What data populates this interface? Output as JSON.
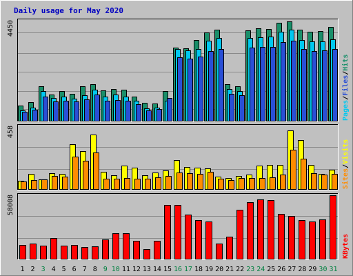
{
  "chart_data": {
    "type": "bar",
    "title": "Daily usage for May 2020",
    "categories": [
      "1",
      "2",
      "3",
      "4",
      "5",
      "6",
      "7",
      "8",
      "9",
      "10",
      "11",
      "12",
      "13",
      "14",
      "15",
      "16",
      "17",
      "18",
      "19",
      "20",
      "21",
      "22",
      "23",
      "24",
      "25",
      "26",
      "27",
      "28",
      "29",
      "30",
      "31"
    ],
    "weekend_days": [
      "3",
      "9",
      "10",
      "16",
      "17",
      "23",
      "24",
      "30",
      "31"
    ],
    "panels": [
      {
        "id": "top",
        "y_max": 4450,
        "y_max_label": "4450",
        "label_parts": [
          "Pages",
          "/",
          "Files",
          "/",
          "Hits"
        ],
        "series": [
          {
            "name": "Hits",
            "color": "#1a8f6a",
            "values": [
              710,
              860,
              1560,
              1180,
              1330,
              1210,
              1560,
              1640,
              1380,
              1430,
              1390,
              1100,
              810,
              800,
              1330,
              3270,
              3230,
              3610,
              3920,
              4060,
              1640,
              1560,
              4010,
              4100,
              4080,
              4360,
              4420,
              4060,
              3960,
              3980,
              4170
            ]
          },
          {
            "name": "Files",
            "color": "#00c8f0",
            "values": [
              500,
              610,
              1330,
              1050,
              1110,
              1010,
              1150,
              1410,
              1100,
              1180,
              1100,
              900,
              590,
              620,
              900,
              3200,
              3140,
              3190,
              3580,
              3680,
              1420,
              1350,
              3700,
              3720,
              3750,
              3970,
              4050,
              3600,
              3550,
              3550,
              3640
            ]
          },
          {
            "name": "Pages",
            "color": "#2a4fd6",
            "values": [
              420,
              520,
              1110,
              880,
              920,
              880,
              980,
              1200,
              910,
              960,
              920,
              760,
              500,
              540,
              1030,
              2820,
              2760,
              2860,
              3100,
              3200,
              1230,
              1170,
              3260,
              3280,
              3300,
              3500,
              3560,
              3190,
              3120,
              3130,
              3200
            ]
          }
        ]
      },
      {
        "id": "middle",
        "y_max": 458,
        "y_max_label": "458",
        "label_parts": [
          "Sites",
          "/",
          "Visits"
        ],
        "series": [
          {
            "name": "Visits",
            "color": "#ffff00",
            "values": [
              65,
              115,
              75,
              120,
              115,
              330,
              280,
              400,
              130,
              105,
              175,
              160,
              105,
              125,
              140,
              215,
              165,
              160,
              155,
              95,
              85,
              100,
              110,
              175,
              180,
              180,
              430,
              360,
              180,
              115,
              145
            ]
          },
          {
            "name": "Sites",
            "color": "#ff8c00",
            "values": [
              60,
              70,
              75,
              100,
              95,
              240,
              210,
              270,
              80,
              80,
              85,
              80,
              80,
              90,
              100,
              125,
              120,
              115,
              130,
              80,
              70,
              85,
              85,
              85,
              90,
              110,
              290,
              225,
              120,
              110,
              115
            ]
          }
        ]
      },
      {
        "id": "bottom",
        "y_max": 58008,
        "y_max_label": "58008",
        "label_parts": [
          "KBytes"
        ],
        "series": [
          {
            "name": "KBytes",
            "color": "#ff0000",
            "values": [
              12900,
              14100,
              12400,
              19400,
              12600,
              13200,
              11300,
              11700,
              17800,
              23500,
              23500,
              16700,
              9200,
              16800,
              49300,
              49300,
              40300,
              35800,
              34500,
              14100,
              20300,
              45200,
              51700,
              54200,
              53400,
              41300,
              39500,
              35300,
              34100,
              36000,
              59000
            ]
          }
        ]
      }
    ]
  }
}
